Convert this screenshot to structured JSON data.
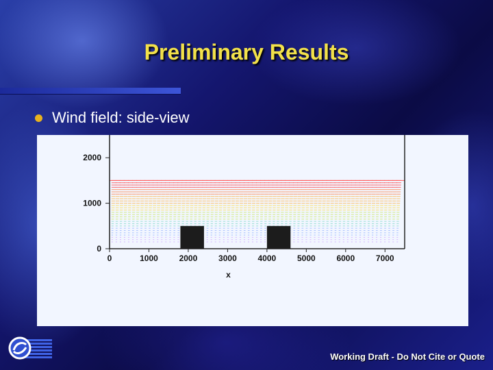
{
  "slide": {
    "title": "Preliminary Results",
    "bullet": "Wind field: side-view",
    "footer": "Working Draft  -  Do Not Cite or Quote"
  },
  "colors": {
    "title": "#f2e14a",
    "bullet": "#e7b21f",
    "panel": "#f2f6ff",
    "building": "#1c1c1c"
  },
  "chart_data": {
    "type": "scatter",
    "title": "",
    "xlabel": "x",
    "ylabel": "",
    "xlim": [
      0,
      7500
    ],
    "ylim": [
      0,
      2500
    ],
    "x_ticks": [
      "0",
      "1000",
      "2000",
      "3000",
      "4000",
      "5000",
      "6000",
      "7000"
    ],
    "y_ticks": [
      "0",
      "1000",
      "2000"
    ],
    "buildings": [
      {
        "x_start": 1800,
        "x_end": 2400,
        "height": 500
      },
      {
        "x_start": 4000,
        "x_end": 4600,
        "height": 500
      }
    ]
  }
}
